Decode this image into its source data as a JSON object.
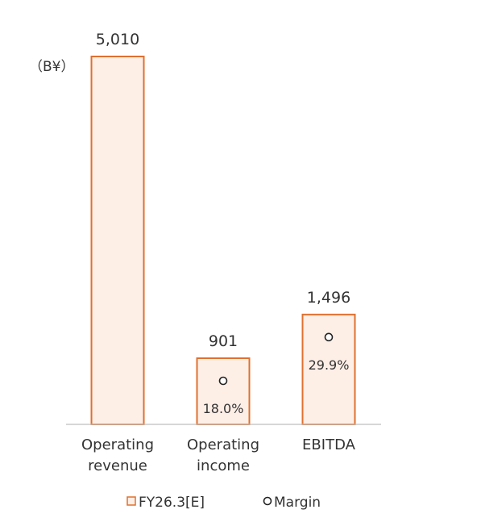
{
  "chart_data": {
    "type": "bar",
    "unit_label": "（B¥）",
    "categories": [
      "Operating revenue",
      "Operating income",
      "EBITDA"
    ],
    "category_label_lines": [
      [
        "Operating",
        "revenue"
      ],
      [
        "Operating",
        "income"
      ],
      [
        "EBITDA"
      ]
    ],
    "series": [
      {
        "name": "FY26.3[E]",
        "values": [
          5010,
          901,
          1496
        ],
        "value_labels": [
          "5,010",
          "901",
          "1,496"
        ]
      },
      {
        "name": "Margin",
        "values": [
          null,
          18.0,
          29.9
        ],
        "value_labels": [
          null,
          "18.0%",
          "29.9%"
        ]
      }
    ],
    "ylim": [
      0,
      5010
    ],
    "grid": false,
    "legend_position": "bottom",
    "colors": {
      "bar_fill": "#fdeee6",
      "bar_stroke": "#e0702f",
      "text": "#333333",
      "axis": "#bfbfbf"
    }
  }
}
